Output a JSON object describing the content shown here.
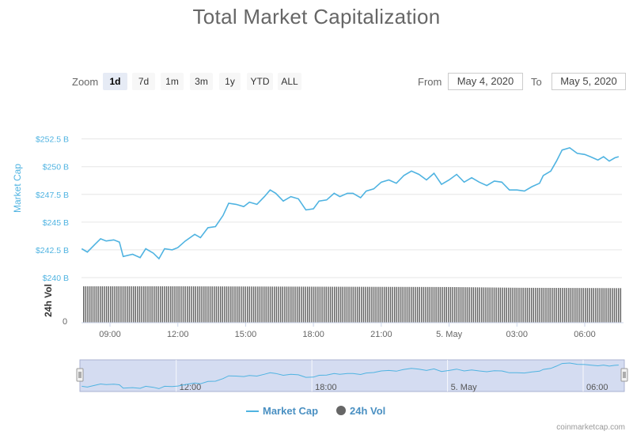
{
  "title": "Total Market Capitalization",
  "zoom": {
    "label": "Zoom",
    "buttons": [
      "1d",
      "7d",
      "1m",
      "3m",
      "1y",
      "YTD",
      "ALL"
    ],
    "active": "1d"
  },
  "range": {
    "from_label": "From",
    "from_value": "May 4, 2020",
    "to_label": "To",
    "to_value": "May 5, 2020"
  },
  "credit": "coinmarketcap.com",
  "colors": {
    "market_cap_line": "#4fb3e1",
    "volume_bars": "#666666",
    "navigator_fill": "#cfd8ef",
    "navigator_border": "#aab2d1",
    "grid": "#e6e6e6",
    "title": "#666666"
  },
  "chart_data": {
    "type": "line",
    "title": "Total Market Capitalization",
    "x": {
      "ticks": [
        "09:00",
        "12:00",
        "15:00",
        "18:00",
        "21:00",
        "5. May",
        "03:00",
        "06:00"
      ],
      "range": [
        "May 4, 2020 07:45",
        "May 5, 2020 07:30"
      ]
    },
    "y_market_cap": {
      "label": "Market Cap",
      "ticks": [
        "$240 B",
        "$242.5 B",
        "$245 B",
        "$247.5 B",
        "$250 B",
        "$252.5 B"
      ],
      "range": [
        240,
        253.4
      ]
    },
    "y_volume": {
      "label": "24h Vol",
      "ticks": [
        "0"
      ]
    },
    "series": [
      {
        "name": "Market Cap",
        "unit": "B USD",
        "points": [
          [
            "07:45",
            242.6
          ],
          [
            "08:00",
            242.3
          ],
          [
            "08:20",
            243.0
          ],
          [
            "08:35",
            243.5
          ],
          [
            "08:50",
            243.3
          ],
          [
            "09:10",
            243.4
          ],
          [
            "09:25",
            243.2
          ],
          [
            "09:35",
            241.9
          ],
          [
            "10:00",
            242.1
          ],
          [
            "10:20",
            241.8
          ],
          [
            "10:35",
            242.6
          ],
          [
            "10:55",
            242.2
          ],
          [
            "11:10",
            241.7
          ],
          [
            "11:25",
            242.6
          ],
          [
            "11:45",
            242.5
          ],
          [
            "12:00",
            242.7
          ],
          [
            "12:20",
            243.3
          ],
          [
            "12:45",
            243.9
          ],
          [
            "13:00",
            243.6
          ],
          [
            "13:20",
            244.5
          ],
          [
            "13:40",
            244.6
          ],
          [
            "14:00",
            245.6
          ],
          [
            "14:15",
            246.7
          ],
          [
            "14:35",
            246.6
          ],
          [
            "14:55",
            246.4
          ],
          [
            "15:10",
            246.8
          ],
          [
            "15:30",
            246.6
          ],
          [
            "15:50",
            247.3
          ],
          [
            "16:05",
            247.9
          ],
          [
            "16:20",
            247.6
          ],
          [
            "16:40",
            246.9
          ],
          [
            "17:00",
            247.3
          ],
          [
            "17:20",
            247.1
          ],
          [
            "17:40",
            246.1
          ],
          [
            "18:00",
            246.2
          ],
          [
            "18:15",
            246.9
          ],
          [
            "18:35",
            247.0
          ],
          [
            "18:55",
            247.6
          ],
          [
            "19:10",
            247.3
          ],
          [
            "19:30",
            247.6
          ],
          [
            "19:45",
            247.6
          ],
          [
            "20:05",
            247.2
          ],
          [
            "20:20",
            247.8
          ],
          [
            "20:40",
            248.0
          ],
          [
            "21:00",
            248.6
          ],
          [
            "21:20",
            248.8
          ],
          [
            "21:40",
            248.5
          ],
          [
            "22:00",
            249.2
          ],
          [
            "22:20",
            249.6
          ],
          [
            "22:40",
            249.3
          ],
          [
            "23:00",
            248.8
          ],
          [
            "23:20",
            249.4
          ],
          [
            "23:40",
            248.4
          ],
          [
            "00:00",
            248.8
          ],
          [
            "00:20",
            249.3
          ],
          [
            "00:40",
            248.6
          ],
          [
            "01:00",
            249.0
          ],
          [
            "01:20",
            248.6
          ],
          [
            "01:40",
            248.3
          ],
          [
            "02:00",
            248.7
          ],
          [
            "02:20",
            248.6
          ],
          [
            "02:40",
            247.9
          ],
          [
            "03:00",
            247.9
          ],
          [
            "03:20",
            247.8
          ],
          [
            "03:40",
            248.2
          ],
          [
            "04:00",
            248.5
          ],
          [
            "04:10",
            249.2
          ],
          [
            "04:30",
            249.6
          ],
          [
            "04:45",
            250.5
          ],
          [
            "05:00",
            251.5
          ],
          [
            "05:20",
            251.7
          ],
          [
            "05:40",
            251.2
          ],
          [
            "06:00",
            251.1
          ],
          [
            "06:15",
            250.9
          ],
          [
            "06:35",
            250.6
          ],
          [
            "06:50",
            250.9
          ],
          [
            "07:05",
            250.5
          ],
          [
            "07:20",
            250.8
          ],
          [
            "07:30",
            250.9
          ]
        ]
      },
      {
        "name": "24h Vol",
        "values_note": "roughly constant volume bars across the day, slight decrease after midnight",
        "relative_levels": [
          [
            "07:45",
            1.0
          ],
          [
            "12:00",
            1.0
          ],
          [
            "18:00",
            0.99
          ],
          [
            "00:00",
            0.98
          ],
          [
            "03:00",
            0.96
          ],
          [
            "07:30",
            0.95
          ]
        ]
      }
    ],
    "legend": [
      "Market Cap",
      "24h Vol"
    ],
    "legend_position": "bottom-center",
    "grid": true,
    "navigator": {
      "ticks": [
        "12:00",
        "18:00",
        "5. May",
        "06:00"
      ]
    }
  }
}
